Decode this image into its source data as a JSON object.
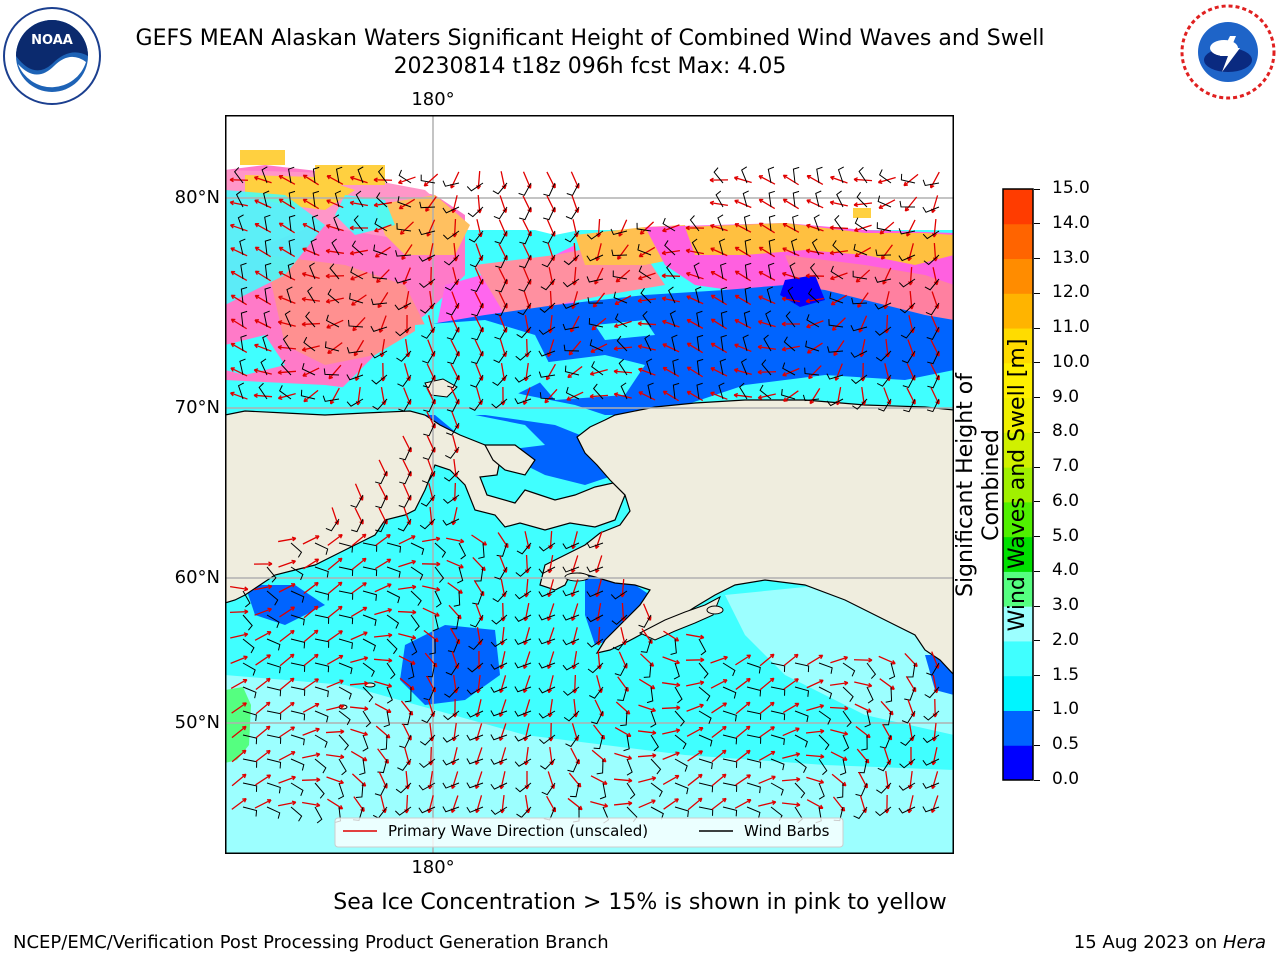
{
  "header": {
    "title_line1": "GEFS MEAN Alaskan Waters Significant Height of Combined Wind Waves and Swell",
    "title_line2": "20230814 t18z 096h fcst   Max: 4.05"
  },
  "logos": {
    "left": {
      "name": "noaa-logo",
      "text": "NOAA",
      "ring_text": "NATIONAL OCEANIC AND ATMOSPHERIC ADMINISTRATION · U.S. DEPARTMENT OF COMMERCE"
    },
    "right": {
      "name": "nws-logo",
      "ring_text": "NATIONAL WEATHER SERVICE"
    }
  },
  "map": {
    "lon_labels": {
      "top": "180°",
      "bottom": "180°"
    },
    "lat_labels": [
      "80°N",
      "70°N",
      "60°N",
      "50°N"
    ],
    "legend": {
      "wave_label": "Primary Wave Direction (unscaled)",
      "wind_label": "Wind Barbs",
      "wave_color": "#e00000",
      "wind_color": "#000000"
    },
    "land_color": "#efedde"
  },
  "colorbar": {
    "title": "Significant Height of Combined Wind Waves and Swell [m]",
    "title_line1": "Significant Height of Combined",
    "title_line2": "Wind Waves and Swell [m]",
    "ticks": [
      "15.0",
      "14.0",
      "13.0",
      "12.0",
      "11.0",
      "10.0",
      "9.0",
      "8.0",
      "7.0",
      "6.0",
      "5.0",
      "4.0",
      "3.0",
      "2.0",
      "1.5",
      "1.0",
      "0.5",
      "0.0"
    ],
    "colors_bottom_to_top": [
      "#0000ff",
      "#0064ff",
      "#00f5ff",
      "#40ffff",
      "#9cffff",
      "#55ff80",
      "#00e000",
      "#50f000",
      "#a0f000",
      "#d0f000",
      "#f0f000",
      "#fff000",
      "#ffdc00",
      "#ffb400",
      "#ff8c00",
      "#ff6400",
      "#ff3c00",
      "#ff0000"
    ]
  },
  "footer": {
    "note": "Sea Ice Concentration > 15% is shown in pink to yellow",
    "credit": "NCEP/EMC/Verification Post Processing Product Generation Branch",
    "date_text": "15 Aug 2023 on ",
    "machine": "Hera"
  }
}
